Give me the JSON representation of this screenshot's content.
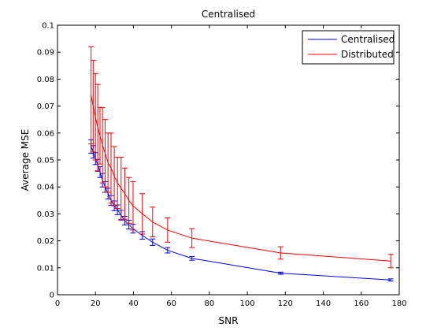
{
  "chart_data": {
    "type": "line",
    "title": "Centralised",
    "xlabel": "SNR",
    "ylabel": "Average MSE",
    "xlim": [
      0,
      180
    ],
    "ylim": [
      0,
      0.1
    ],
    "xticks": [
      0,
      20,
      40,
      60,
      80,
      100,
      120,
      140,
      160,
      180
    ],
    "yticks": [
      0,
      0.01,
      0.02,
      0.03,
      0.04,
      0.05,
      0.06,
      0.07,
      0.08,
      0.09,
      0.1
    ],
    "xtick_labels": [
      "0",
      "20",
      "40",
      "60",
      "80",
      "100",
      "120",
      "140",
      "160",
      "180"
    ],
    "ytick_labels": [
      "0",
      "0.01",
      "0.02",
      "0.03",
      "0.04",
      "0.05",
      "0.06",
      "0.07",
      "0.08",
      "0.09",
      "0.1"
    ],
    "grid": false,
    "legend_position": "top-right",
    "series": [
      {
        "name": "Centralised",
        "color": "#0000ff",
        "points": [
          {
            "x": 17.7,
            "y": 0.055,
            "err": 0.0025
          },
          {
            "x": 18.8,
            "y": 0.053,
            "err": 0.0023
          },
          {
            "x": 20.0,
            "y": 0.0505,
            "err": 0.0022
          },
          {
            "x": 21.2,
            "y": 0.048,
            "err": 0.0022
          },
          {
            "x": 22.4,
            "y": 0.0455,
            "err": 0.002
          },
          {
            "x": 23.7,
            "y": 0.0425,
            "err": 0.0025
          },
          {
            "x": 25.1,
            "y": 0.04,
            "err": 0.002
          },
          {
            "x": 26.6,
            "y": 0.0375,
            "err": 0.002
          },
          {
            "x": 28.2,
            "y": 0.035,
            "err": 0.0018
          },
          {
            "x": 29.9,
            "y": 0.033,
            "err": 0.0018
          },
          {
            "x": 31.6,
            "y": 0.0315,
            "err": 0.0018
          },
          {
            "x": 33.5,
            "y": 0.0295,
            "err": 0.0018
          },
          {
            "x": 35.5,
            "y": 0.0275,
            "err": 0.0016
          },
          {
            "x": 37.6,
            "y": 0.026,
            "err": 0.0016
          },
          {
            "x": 39.8,
            "y": 0.0245,
            "err": 0.0016
          },
          {
            "x": 44.7,
            "y": 0.022,
            "err": 0.0014
          },
          {
            "x": 50.1,
            "y": 0.0195,
            "err": 0.0012
          },
          {
            "x": 58.0,
            "y": 0.0165,
            "err": 0.001
          },
          {
            "x": 70.8,
            "y": 0.0135,
            "err": 0.0007
          },
          {
            "x": 117.5,
            "y": 0.008,
            "err": 0.0004
          },
          {
            "x": 175.5,
            "y": 0.0055,
            "err": 0.0004
          }
        ]
      },
      {
        "name": "Distributed",
        "color": "#ff0000",
        "points": [
          {
            "x": 17.7,
            "y": 0.074,
            "err": 0.018
          },
          {
            "x": 18.8,
            "y": 0.07,
            "err": 0.017
          },
          {
            "x": 20.0,
            "y": 0.066,
            "err": 0.016
          },
          {
            "x": 21.2,
            "y": 0.062,
            "err": 0.016
          },
          {
            "x": 22.4,
            "y": 0.059,
            "err": 0.0105
          },
          {
            "x": 23.7,
            "y": 0.0555,
            "err": 0.014
          },
          {
            "x": 25.1,
            "y": 0.0525,
            "err": 0.0125
          },
          {
            "x": 26.6,
            "y": 0.049,
            "err": 0.011
          },
          {
            "x": 28.2,
            "y": 0.047,
            "err": 0.013
          },
          {
            "x": 29.9,
            "y": 0.044,
            "err": 0.011
          },
          {
            "x": 31.6,
            "y": 0.0415,
            "err": 0.0095
          },
          {
            "x": 33.5,
            "y": 0.0395,
            "err": 0.0115
          },
          {
            "x": 35.5,
            "y": 0.0375,
            "err": 0.0095
          },
          {
            "x": 37.6,
            "y": 0.035,
            "err": 0.0085
          },
          {
            "x": 39.8,
            "y": 0.033,
            "err": 0.009
          },
          {
            "x": 44.7,
            "y": 0.03,
            "err": 0.0075
          },
          {
            "x": 50.1,
            "y": 0.027,
            "err": 0.0055
          },
          {
            "x": 58.0,
            "y": 0.024,
            "err": 0.0045
          },
          {
            "x": 70.8,
            "y": 0.021,
            "err": 0.0035
          },
          {
            "x": 117.5,
            "y": 0.0155,
            "err": 0.0023
          },
          {
            "x": 175.5,
            "y": 0.0125,
            "err": 0.0025
          }
        ]
      }
    ]
  }
}
